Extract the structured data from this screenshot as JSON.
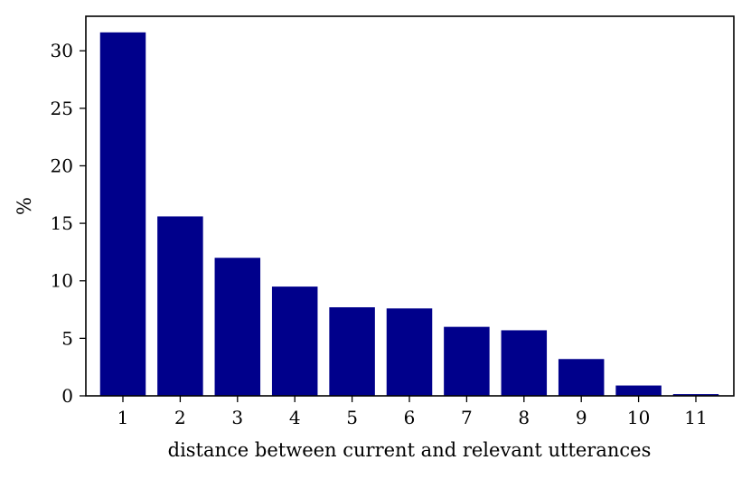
{
  "chart_data": {
    "type": "bar",
    "title": "",
    "xlabel": "distance between current and relevant utterances",
    "ylabel": "%",
    "categories": [
      "1",
      "2",
      "3",
      "4",
      "5",
      "6",
      "7",
      "8",
      "9",
      "10",
      "11"
    ],
    "values": [
      31.6,
      15.6,
      12.0,
      9.5,
      7.7,
      7.6,
      6.0,
      5.7,
      3.2,
      0.9,
      0.15
    ],
    "yticks": [
      "0",
      "5",
      "10",
      "15",
      "20",
      "25",
      "30"
    ],
    "ylim": [
      0,
      33
    ],
    "grid": false,
    "bar_color": "#00008b"
  }
}
